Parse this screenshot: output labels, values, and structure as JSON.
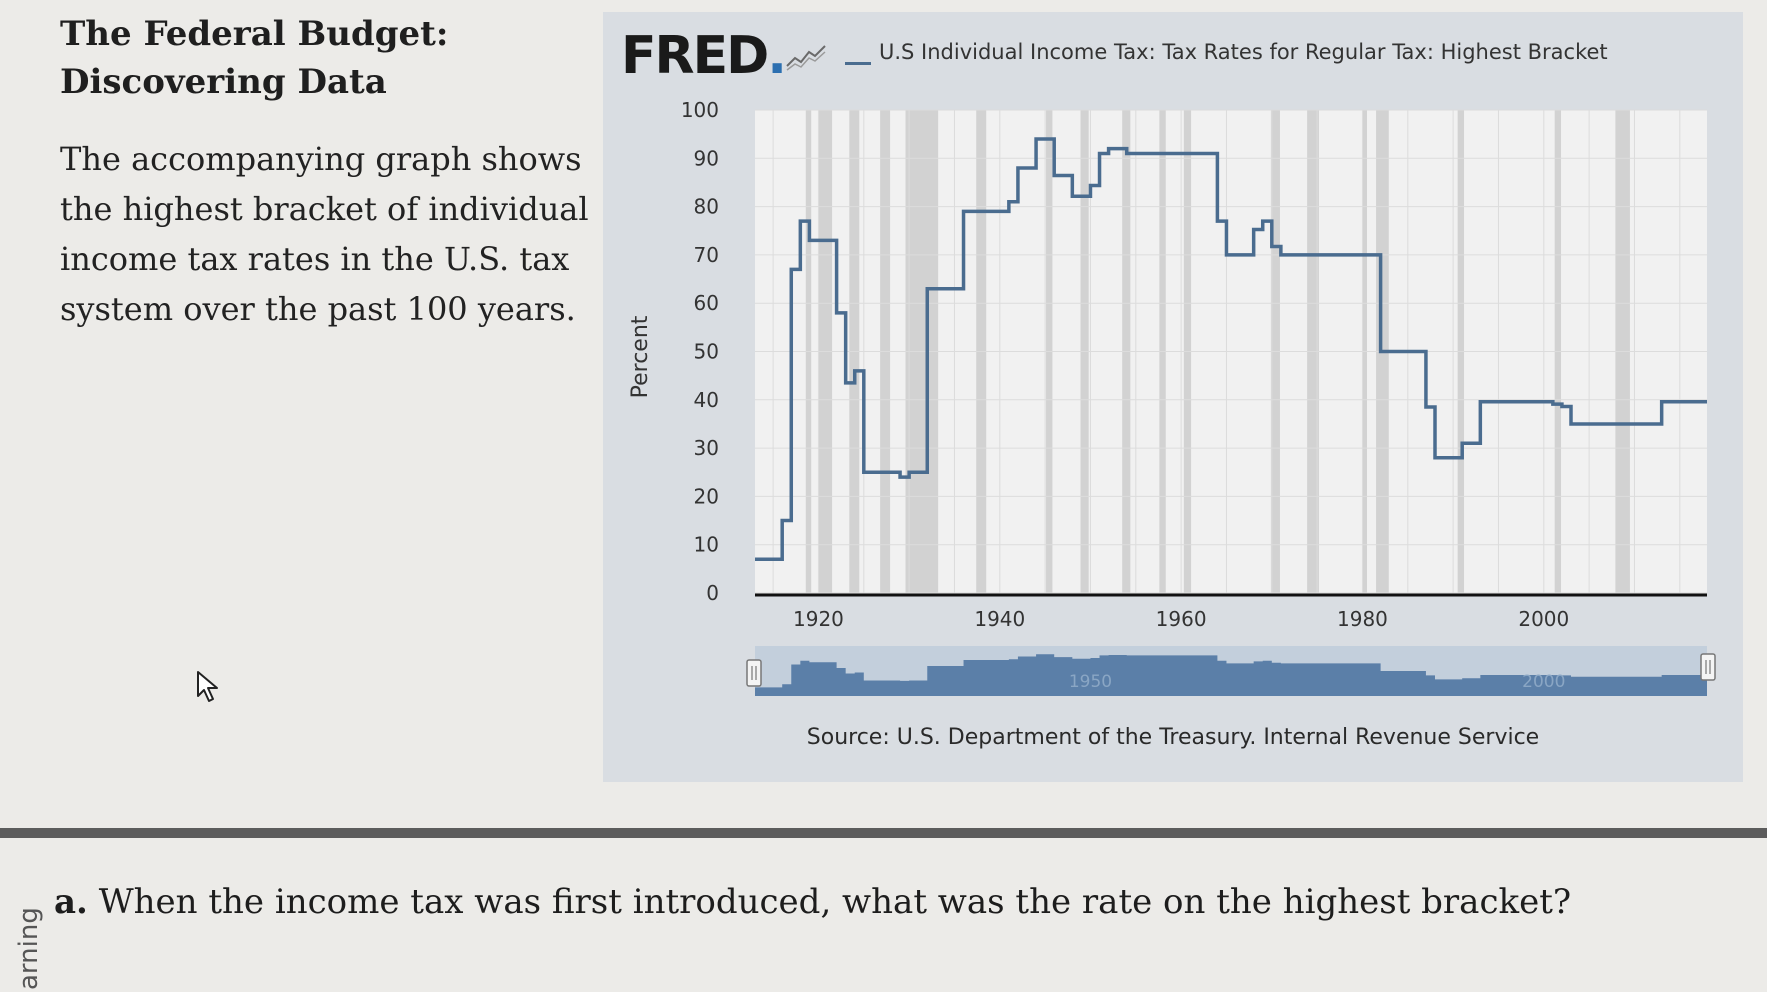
{
  "textbook": {
    "title": "The Federal Budget: Discovering Data",
    "description": "The accompanying graph shows the highest bracket of individual income tax rates in the U.S. tax system over the past 100 years.",
    "question_letter": "a.",
    "question": "When the income tax was first introduced, what was the rate on the highest bracket?",
    "side_word": "arning"
  },
  "chart_header": {
    "logo": "FRED",
    "logo_dot": ".",
    "series_label": "U.S Individual Income Tax: Tax Rates for Regular Tax: Highest Bracket",
    "source": "Source: U.S. Department of the Treasury. Internal Revenue Service"
  },
  "icons": {
    "cursor": "mouse-pointer-icon",
    "fred_sparkline": "fred-chart-icon",
    "slider_handle": "range-handle-icon"
  },
  "colors": {
    "line": "#4a6c8f",
    "recession_bar": "#c7c7c7",
    "plot_background": "#f1f1f1",
    "navigator_fill": "#5b7fa8"
  },
  "chart_data": {
    "type": "line",
    "title": "U.S Individual Income Tax: Tax Rates for Regular Tax: Highest Bracket",
    "ylabel": "Percent",
    "xlabel": "",
    "ylim": [
      0,
      100
    ],
    "xlim": [
      1913,
      2018
    ],
    "grid": true,
    "y_ticks": [
      "0",
      "10",
      "20",
      "30",
      "40",
      "50",
      "60",
      "70",
      "80",
      "90",
      "100"
    ],
    "x_ticks": [
      "1920",
      "1940",
      "1960",
      "1980",
      "2000"
    ],
    "navigator_labels": [
      "1950",
      "2000"
    ],
    "source": "Source: U.S. Department of the Treasury. Internal Revenue Service",
    "step": true,
    "series": [
      {
        "name": "U.S Individual Income Tax: Tax Rates for Regular Tax: Highest Bracket",
        "x": [
          1913,
          1916,
          1917,
          1918,
          1919,
          1922,
          1923,
          1924,
          1925,
          1929,
          1930,
          1932,
          1936,
          1941,
          1942,
          1944,
          1946,
          1948,
          1950,
          1951,
          1952,
          1954,
          1964,
          1965,
          1968,
          1969,
          1970,
          1971,
          1982,
          1987,
          1988,
          1991,
          1993,
          2001,
          2002,
          2003,
          2013,
          2018
        ],
        "y": [
          7,
          15,
          67,
          77,
          73,
          58,
          43.5,
          46,
          25,
          24,
          25,
          63,
          79,
          81,
          88,
          94,
          86.45,
          82.13,
          84.36,
          91,
          92,
          91,
          77,
          70,
          75.25,
          77,
          71.75,
          70,
          50,
          38.5,
          28,
          31,
          39.6,
          39.1,
          38.6,
          35,
          39.6,
          39.6
        ]
      }
    ],
    "recession_periods": [
      [
        1918.6,
        1919.2
      ],
      [
        1920.0,
        1921.5
      ],
      [
        1923.4,
        1924.5
      ],
      [
        1926.8,
        1927.9
      ],
      [
        1929.6,
        1933.2
      ],
      [
        1937.4,
        1938.5
      ],
      [
        1945.1,
        1945.8
      ],
      [
        1948.9,
        1949.8
      ],
      [
        1953.5,
        1954.4
      ],
      [
        1957.6,
        1958.3
      ],
      [
        1960.3,
        1961.1
      ],
      [
        1969.9,
        1970.9
      ],
      [
        1973.9,
        1975.2
      ],
      [
        1980.0,
        1980.5
      ],
      [
        1981.5,
        1982.9
      ],
      [
        1990.5,
        1991.2
      ],
      [
        2001.2,
        2001.9
      ],
      [
        2007.9,
        2009.5
      ]
    ]
  }
}
